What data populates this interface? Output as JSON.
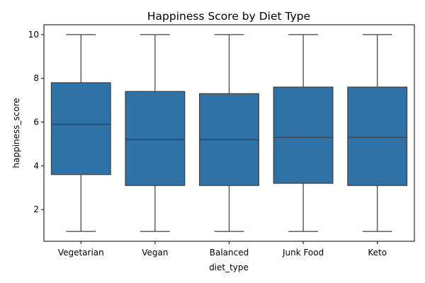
{
  "chart_data": {
    "type": "box",
    "title": "Happiness Score by Diet Type",
    "xlabel": "diet_type",
    "ylabel": "happiness_score",
    "ylim": [
      0.55,
      10.45
    ],
    "yticks": [
      2,
      4,
      6,
      8,
      10
    ],
    "grid": false,
    "color": "#2e72a8",
    "categories": [
      "Vegetarian",
      "Vegan",
      "Balanced",
      "Junk Food",
      "Keto"
    ],
    "boxes": [
      {
        "min": 1.0,
        "q1": 3.6,
        "median": 5.9,
        "q3": 7.8,
        "max": 10.0
      },
      {
        "min": 1.0,
        "q1": 3.1,
        "median": 5.2,
        "q3": 7.4,
        "max": 10.0
      },
      {
        "min": 1.0,
        "q1": 3.1,
        "median": 5.2,
        "q3": 7.3,
        "max": 10.0
      },
      {
        "min": 1.0,
        "q1": 3.2,
        "median": 5.3,
        "q3": 7.6,
        "max": 10.0
      },
      {
        "min": 1.0,
        "q1": 3.1,
        "median": 5.3,
        "q3": 7.6,
        "max": 10.0
      }
    ]
  }
}
